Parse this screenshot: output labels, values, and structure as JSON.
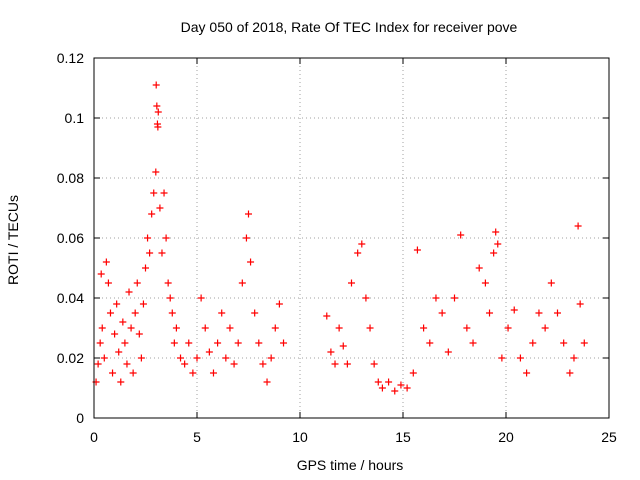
{
  "chart_data": {
    "type": "scatter",
    "title": "Day 050 of 2018, Rate Of TEC Index for receiver pove",
    "xlabel": "GPS time / hours",
    "ylabel": "ROTI / TECUs",
    "xlim": [
      0,
      25
    ],
    "ylim": [
      0,
      0.12
    ],
    "xticks": [
      0,
      5,
      10,
      15,
      20,
      25
    ],
    "xtick_labels": [
      "0",
      "5",
      "10",
      "15",
      "20",
      "25"
    ],
    "yticks": [
      0,
      0.02,
      0.04,
      0.06,
      0.08,
      0.1,
      0.12
    ],
    "ytick_labels": [
      "0",
      "0.02",
      "0.04",
      "0.06",
      "0.08",
      "0.1",
      "0.12"
    ],
    "grid": true,
    "marker": "+",
    "color": "#ff0000",
    "series": [
      {
        "name": "ROTI",
        "points": [
          [
            0.1,
            0.012
          ],
          [
            0.2,
            0.018
          ],
          [
            0.3,
            0.025
          ],
          [
            0.35,
            0.048
          ],
          [
            0.4,
            0.03
          ],
          [
            0.5,
            0.02
          ],
          [
            0.6,
            0.052
          ],
          [
            0.7,
            0.045
          ],
          [
            0.8,
            0.035
          ],
          [
            0.9,
            0.015
          ],
          [
            1.0,
            0.028
          ],
          [
            1.1,
            0.038
          ],
          [
            1.2,
            0.022
          ],
          [
            1.3,
            0.012
          ],
          [
            1.4,
            0.032
          ],
          [
            1.5,
            0.025
          ],
          [
            1.6,
            0.018
          ],
          [
            1.7,
            0.042
          ],
          [
            1.8,
            0.03
          ],
          [
            1.9,
            0.015
          ],
          [
            2.0,
            0.035
          ],
          [
            2.1,
            0.045
          ],
          [
            2.2,
            0.028
          ],
          [
            2.3,
            0.02
          ],
          [
            2.4,
            0.038
          ],
          [
            2.5,
            0.05
          ],
          [
            2.6,
            0.06
          ],
          [
            2.7,
            0.055
          ],
          [
            2.8,
            0.068
          ],
          [
            2.9,
            0.075
          ],
          [
            3.0,
            0.082
          ],
          [
            3.02,
            0.111
          ],
          [
            3.05,
            0.104
          ],
          [
            3.08,
            0.098
          ],
          [
            3.1,
            0.097
          ],
          [
            3.12,
            0.102
          ],
          [
            3.2,
            0.07
          ],
          [
            3.3,
            0.055
          ],
          [
            3.4,
            0.075
          ],
          [
            3.5,
            0.06
          ],
          [
            3.6,
            0.045
          ],
          [
            3.7,
            0.04
          ],
          [
            3.8,
            0.035
          ],
          [
            3.9,
            0.025
          ],
          [
            4.0,
            0.03
          ],
          [
            4.2,
            0.02
          ],
          [
            4.4,
            0.018
          ],
          [
            4.6,
            0.025
          ],
          [
            4.8,
            0.015
          ],
          [
            5.0,
            0.02
          ],
          [
            5.2,
            0.04
          ],
          [
            5.4,
            0.03
          ],
          [
            5.6,
            0.022
          ],
          [
            5.8,
            0.015
          ],
          [
            6.0,
            0.025
          ],
          [
            6.2,
            0.035
          ],
          [
            6.4,
            0.02
          ],
          [
            6.6,
            0.03
          ],
          [
            6.8,
            0.018
          ],
          [
            7.0,
            0.025
          ],
          [
            7.2,
            0.045
          ],
          [
            7.4,
            0.06
          ],
          [
            7.5,
            0.068
          ],
          [
            7.6,
            0.052
          ],
          [
            7.8,
            0.035
          ],
          [
            8.0,
            0.025
          ],
          [
            8.2,
            0.018
          ],
          [
            8.4,
            0.012
          ],
          [
            8.6,
            0.02
          ],
          [
            8.8,
            0.03
          ],
          [
            9.0,
            0.038
          ],
          [
            9.2,
            0.025
          ],
          [
            11.3,
            0.034
          ],
          [
            11.5,
            0.022
          ],
          [
            11.7,
            0.018
          ],
          [
            11.9,
            0.03
          ],
          [
            12.1,
            0.024
          ],
          [
            12.3,
            0.018
          ],
          [
            12.5,
            0.045
          ],
          [
            12.8,
            0.055
          ],
          [
            13.0,
            0.058
          ],
          [
            13.2,
            0.04
          ],
          [
            13.4,
            0.03
          ],
          [
            13.6,
            0.018
          ],
          [
            13.8,
            0.012
          ],
          [
            14.0,
            0.01
          ],
          [
            14.3,
            0.012
          ],
          [
            14.6,
            0.009
          ],
          [
            14.9,
            0.011
          ],
          [
            15.2,
            0.01
          ],
          [
            15.5,
            0.015
          ],
          [
            15.7,
            0.056
          ],
          [
            16.0,
            0.03
          ],
          [
            16.3,
            0.025
          ],
          [
            16.6,
            0.04
          ],
          [
            16.9,
            0.035
          ],
          [
            17.2,
            0.022
          ],
          [
            17.5,
            0.04
          ],
          [
            17.8,
            0.061
          ],
          [
            18.1,
            0.03
          ],
          [
            18.4,
            0.025
          ],
          [
            18.7,
            0.05
          ],
          [
            19.0,
            0.045
          ],
          [
            19.2,
            0.035
          ],
          [
            19.4,
            0.055
          ],
          [
            19.5,
            0.062
          ],
          [
            19.6,
            0.058
          ],
          [
            19.8,
            0.02
          ],
          [
            20.1,
            0.03
          ],
          [
            20.4,
            0.036
          ],
          [
            20.7,
            0.02
          ],
          [
            21.0,
            0.015
          ],
          [
            21.3,
            0.025
          ],
          [
            21.6,
            0.035
          ],
          [
            21.9,
            0.03
          ],
          [
            22.2,
            0.045
          ],
          [
            22.5,
            0.035
          ],
          [
            22.8,
            0.025
          ],
          [
            23.1,
            0.015
          ],
          [
            23.3,
            0.02
          ],
          [
            23.5,
            0.064
          ],
          [
            23.6,
            0.038
          ],
          [
            23.8,
            0.025
          ]
        ]
      }
    ]
  }
}
